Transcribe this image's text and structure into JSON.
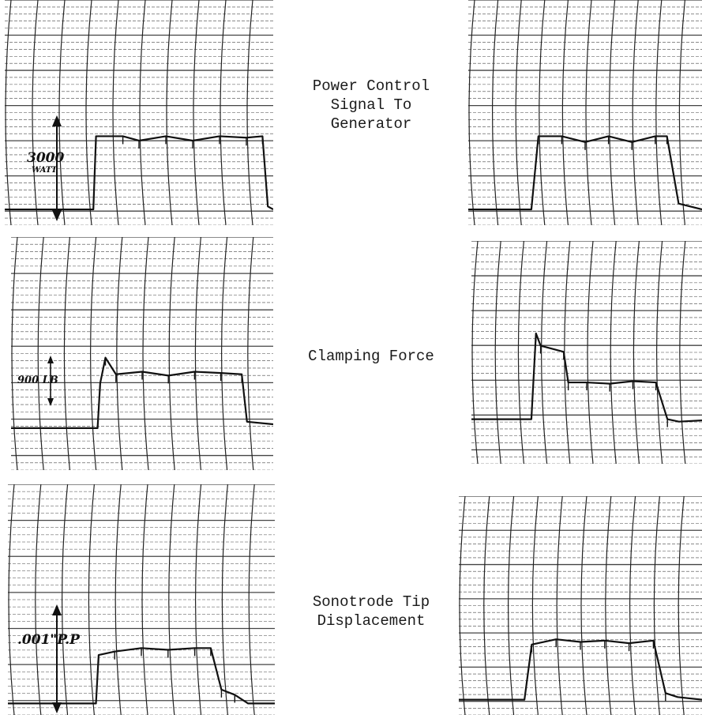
{
  "captions": {
    "power": [
      "Power Control",
      "Signal To",
      "Generator"
    ],
    "clamping": [
      "Clamping Force"
    ],
    "sonotrode": [
      "Sonotrode Tip",
      "Displacement"
    ]
  },
  "scale_labels": {
    "power": [
      "3000",
      "WATT"
    ],
    "clamping": [
      "900 LB"
    ],
    "sonotrode": [
      ".001\"P.P"
    ]
  },
  "colors": {
    "ink": "#111111",
    "grid": "#444444",
    "paper": "#ffffff"
  },
  "chart_data": [
    {
      "type": "line",
      "caption": "Power Control Signal To Generator",
      "side": "left",
      "scale_annotation": "3000 WATT",
      "x": [
        0,
        0.33,
        0.34,
        0.44,
        0.5,
        0.6,
        0.7,
        0.8,
        0.9,
        0.96,
        0.98,
        1.0
      ],
      "y": [
        0,
        0,
        0.5,
        0.5,
        0.47,
        0.5,
        0.47,
        0.5,
        0.49,
        0.5,
        0.02,
        0
      ]
    },
    {
      "type": "line",
      "caption": "Power Control Signal To Generator",
      "side": "right",
      "x": [
        0,
        0.27,
        0.3,
        0.4,
        0.5,
        0.6,
        0.7,
        0.8,
        0.85,
        0.9,
        1.0
      ],
      "y": [
        0,
        0,
        0.5,
        0.5,
        0.46,
        0.5,
        0.46,
        0.5,
        0.5,
        0.04,
        0
      ]
    },
    {
      "type": "line",
      "caption": "Clamping Force",
      "side": "left",
      "scale_annotation": "900 LB",
      "x": [
        0,
        0.33,
        0.34,
        0.36,
        0.4,
        0.5,
        0.6,
        0.7,
        0.8,
        0.88,
        0.9,
        1.0
      ],
      "y": [
        0,
        0,
        0.35,
        0.55,
        0.42,
        0.44,
        0.41,
        0.44,
        0.43,
        0.42,
        0.05,
        0.03
      ]
    },
    {
      "type": "line",
      "caption": "Clamping Force",
      "side": "right",
      "x": [
        0,
        0.26,
        0.28,
        0.3,
        0.4,
        0.42,
        0.5,
        0.6,
        0.7,
        0.8,
        0.85,
        0.9,
        1.0
      ],
      "y": [
        0,
        0,
        0.7,
        0.6,
        0.55,
        0.3,
        0.3,
        0.29,
        0.31,
        0.3,
        0.0,
        -0.02,
        -0.01
      ]
    },
    {
      "type": "line",
      "caption": "Sonotrode Tip Displacement",
      "side": "left",
      "scale_annotation": ".001\"P.P",
      "x": [
        0,
        0.33,
        0.34,
        0.4,
        0.5,
        0.6,
        0.7,
        0.76,
        0.8,
        0.85,
        0.9,
        1.0
      ],
      "y": [
        0,
        0,
        0.28,
        0.3,
        0.32,
        0.31,
        0.32,
        0.32,
        0.08,
        0.05,
        0.0,
        0
      ]
    },
    {
      "type": "line",
      "caption": "Sonotrode Tip Displacement",
      "side": "right",
      "x": [
        0,
        0.27,
        0.3,
        0.4,
        0.5,
        0.6,
        0.7,
        0.8,
        0.85,
        0.9,
        1.0
      ],
      "y": [
        0,
        0,
        0.42,
        0.46,
        0.44,
        0.45,
        0.43,
        0.45,
        0.05,
        0.02,
        0
      ]
    }
  ]
}
